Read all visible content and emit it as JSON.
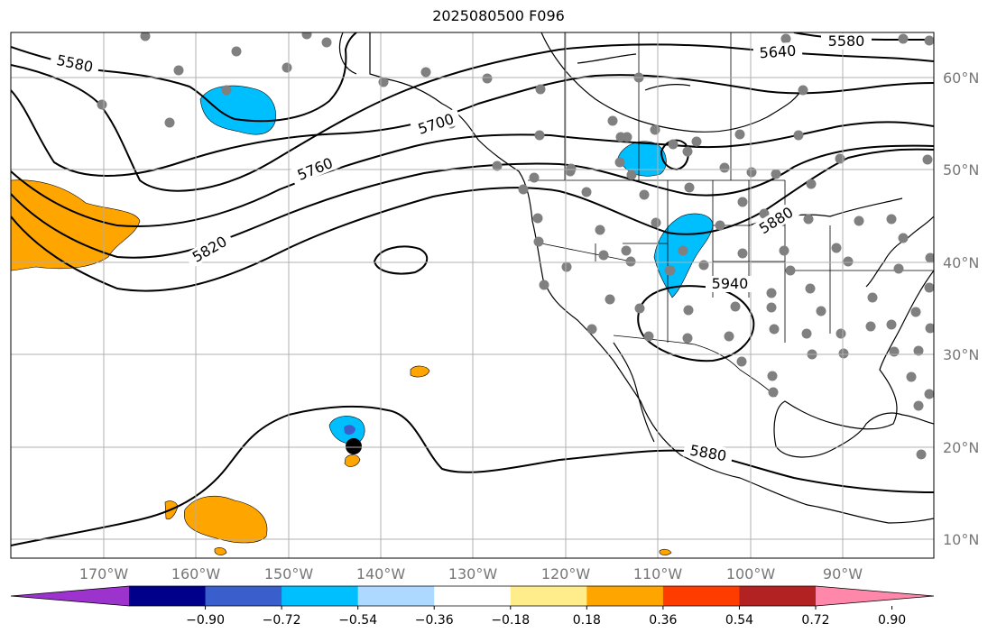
{
  "title": "2025080500 F096",
  "lat_labels": [
    "60°N",
    "50°N",
    "40°N",
    "30°N",
    "20°N",
    "10°N"
  ],
  "lon_labels": [
    "170°W",
    "160°W",
    "150°W",
    "140°W",
    "130°W",
    "120°W",
    "110°W",
    "100°W",
    "90°W"
  ],
  "contour_labels": [
    "5580",
    "5580",
    "5640",
    "5700",
    "5760",
    "5820",
    "5880",
    "5880",
    "5940"
  ],
  "colorbar": {
    "ticks": [
      "−0.90",
      "−0.72",
      "−0.54",
      "−0.36",
      "−0.18",
      "0.18",
      "0.36",
      "0.54",
      "0.72",
      "0.90"
    ],
    "colors": [
      "#9b33cc",
      "#00008b",
      "#3a5fcd",
      "#00bfff",
      "#add8ff",
      "#ffffff",
      "#ffec8b",
      "#ffa500",
      "#ff3c00",
      "#b22222",
      "#ff88aa"
    ]
  },
  "colors": {
    "warm": "#ffa500",
    "cold": "#00bfff",
    "cold_strong": "#3a5fcd",
    "station": "#808080",
    "grid": "#b0b0b0"
  }
}
